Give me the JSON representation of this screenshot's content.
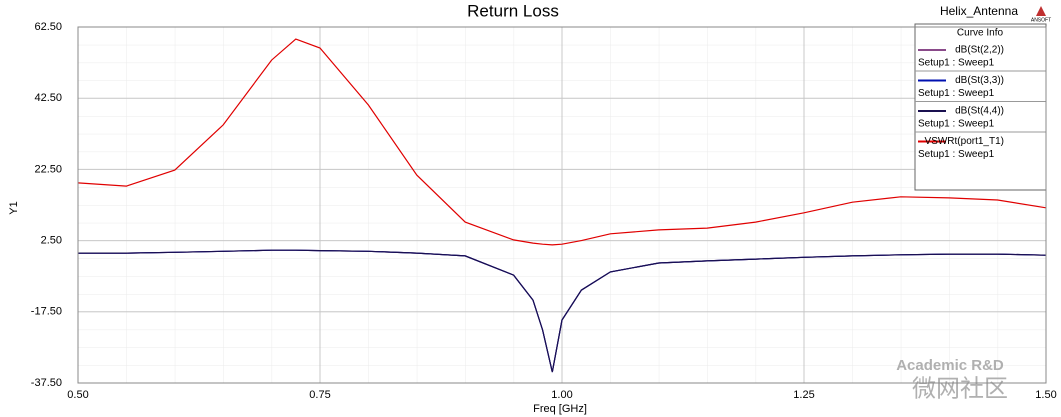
{
  "chart_data": {
    "type": "line",
    "title": "Return Loss",
    "project": "Helix_Antenna",
    "logo": "ANSOFT",
    "x_label": "Freq [GHz]",
    "y_label": "Y1",
    "legend_title": "Curve Info",
    "watermark": "Academic R&D",
    "watermark_cn": "微网社区",
    "x": [
      0.5,
      0.55,
      0.6,
      0.65,
      0.7,
      0.725,
      0.75,
      0.8,
      0.85,
      0.9,
      0.95,
      0.97,
      0.98,
      0.99,
      1.0,
      1.02,
      1.05,
      1.1,
      1.15,
      1.2,
      1.25,
      1.3,
      1.35,
      1.4,
      1.45,
      1.5
    ],
    "series": [
      {
        "name": "dB(St(2,2))",
        "setup": "Setup1 : Sweep1",
        "color": "#8a4a8a",
        "values": [
          -1.0,
          -1.0,
          -0.8,
          -0.5,
          -0.2,
          -0.2,
          -0.3,
          -0.5,
          -1.0,
          -1.8,
          -7.2,
          -14.2,
          -22.6,
          -34.4,
          -19.8,
          -11.4,
          -6.3,
          -3.8,
          -3.2,
          -2.7,
          -2.2,
          -1.8,
          -1.5,
          -1.3,
          -1.3,
          -1.6
        ]
      },
      {
        "name": "dB(St(3,3))",
        "setup": "Setup1 : Sweep1",
        "color": "#0010b0",
        "values": [
          -1.0,
          -1.0,
          -0.8,
          -0.5,
          -0.2,
          -0.2,
          -0.3,
          -0.5,
          -1.0,
          -1.8,
          -7.2,
          -14.2,
          -22.6,
          -34.4,
          -19.8,
          -11.4,
          -6.3,
          -3.8,
          -3.2,
          -2.7,
          -2.2,
          -1.8,
          -1.5,
          -1.3,
          -1.3,
          -1.6
        ]
      },
      {
        "name": "dB(St(4,4))",
        "setup": "Setup1 : Sweep1",
        "color": "#1a1050",
        "values": [
          -1.0,
          -1.0,
          -0.8,
          -0.5,
          -0.2,
          -0.2,
          -0.3,
          -0.5,
          -1.0,
          -1.8,
          -7.2,
          -14.2,
          -22.6,
          -34.4,
          -19.8,
          -11.4,
          -6.3,
          -3.8,
          -3.2,
          -2.7,
          -2.2,
          -1.8,
          -1.5,
          -1.3,
          -1.3,
          -1.6
        ]
      },
      {
        "name": "VSWRt(port1_T1)",
        "setup": "Setup1 : Sweep1",
        "color": "#e00000",
        "values": [
          18.7,
          17.8,
          22.3,
          35.0,
          53.2,
          59.1,
          56.6,
          40.6,
          20.9,
          7.7,
          2.7,
          1.8,
          1.5,
          1.3,
          1.5,
          2.5,
          4.4,
          5.5,
          6.0,
          7.7,
          10.3,
          13.3,
          14.8,
          14.5,
          13.9,
          11.7
        ]
      }
    ],
    "xlim": [
      0.5,
      1.5
    ],
    "xticks": [
      {
        "value": 0.5,
        "label": "0.50"
      },
      {
        "value": 0.75,
        "label": "0.75"
      },
      {
        "value": 1.0,
        "label": "1.00"
      },
      {
        "value": 1.25,
        "label": "1.25"
      },
      {
        "value": 1.5,
        "label": "1.50"
      }
    ],
    "ylim": [
      -37.5,
      62.5
    ],
    "yticks": [
      {
        "value": -37.5,
        "label": "-37.50"
      },
      {
        "value": -17.5,
        "label": "-17.50"
      },
      {
        "value": 2.5,
        "label": "2.50"
      },
      {
        "value": 22.5,
        "label": "22.50"
      },
      {
        "value": 42.5,
        "label": "42.50"
      },
      {
        "value": 62.5,
        "label": "62.50"
      }
    ],
    "grid": true
  }
}
